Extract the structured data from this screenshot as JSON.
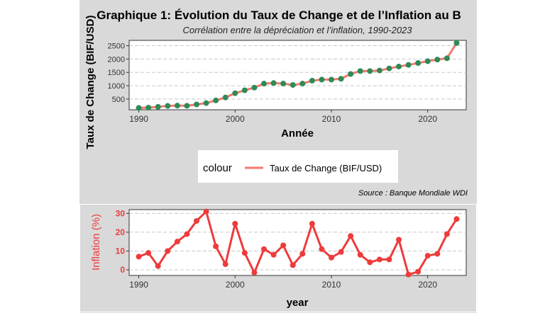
{
  "chart_data": [
    {
      "type": "line",
      "title": "Graphique 1: Évolution du Taux de Change et de l’Inflation au B",
      "subtitle": "Corrélation entre la dépréciation et l’inflation, 1990-2023",
      "xlabel": "Année",
      "ylabel": "Taux de Change (BIF/USD)",
      "xlim": [
        1989,
        2024
      ],
      "ylim": [
        100,
        2700
      ],
      "x_ticks": [
        1990,
        2000,
        2010,
        2020
      ],
      "y_ticks": [
        500,
        1000,
        1500,
        2000,
        2500
      ],
      "grid": true,
      "legend": {
        "title": "colour",
        "position": "bottom",
        "entries": [
          "Taux de Change (BIF/USD)"
        ]
      },
      "caption": "Source : Banque Mondiale WDI",
      "line_color": "#f8766d",
      "point_color": "#2e8b57",
      "series": [
        {
          "name": "Taux de Change (BIF/USD)",
          "x": [
            1990,
            1991,
            1992,
            1993,
            1994,
            1995,
            1996,
            1997,
            1998,
            1999,
            2000,
            2001,
            2002,
            2003,
            2004,
            2005,
            2006,
            2007,
            2008,
            2009,
            2010,
            2011,
            2012,
            2013,
            2014,
            2015,
            2016,
            2017,
            2018,
            2019,
            2020,
            2021,
            2022,
            2023
          ],
          "values": [
            170,
            180,
            210,
            245,
            255,
            250,
            300,
            350,
            450,
            560,
            720,
            830,
            930,
            1080,
            1100,
            1080,
            1030,
            1080,
            1190,
            1230,
            1230,
            1260,
            1440,
            1550,
            1550,
            1570,
            1650,
            1720,
            1780,
            1850,
            1920,
            1980,
            2030,
            2600
          ]
        }
      ]
    },
    {
      "type": "line",
      "xlabel": "year",
      "ylabel": "Inflation (%)",
      "xlim": [
        1989,
        2024
      ],
      "ylim": [
        -3,
        32
      ],
      "x_ticks": [
        1990,
        2000,
        2010,
        2020
      ],
      "y_ticks": [
        0,
        10,
        20,
        30
      ],
      "grid": true,
      "line_color": "#ee3b3b",
      "series": [
        {
          "x": [
            1990,
            1991,
            1992,
            1993,
            1994,
            1995,
            1996,
            1997,
            1998,
            1999,
            2000,
            2001,
            2002,
            2003,
            2004,
            2005,
            2006,
            2007,
            2008,
            2009,
            2010,
            2011,
            2012,
            2013,
            2014,
            2015,
            2016,
            2017,
            2018,
            2019,
            2020,
            2021,
            2022,
            2023
          ],
          "values": [
            7,
            9,
            2,
            10,
            15,
            19,
            26,
            31,
            12.5,
            3,
            24.5,
            9,
            -1.5,
            11,
            8,
            13,
            2.5,
            8.5,
            24.5,
            11,
            6.5,
            9.5,
            18,
            8,
            4,
            5.5,
            5.5,
            16,
            -2.5,
            -1,
            7.5,
            8.5,
            19,
            27
          ]
        }
      ]
    }
  ]
}
